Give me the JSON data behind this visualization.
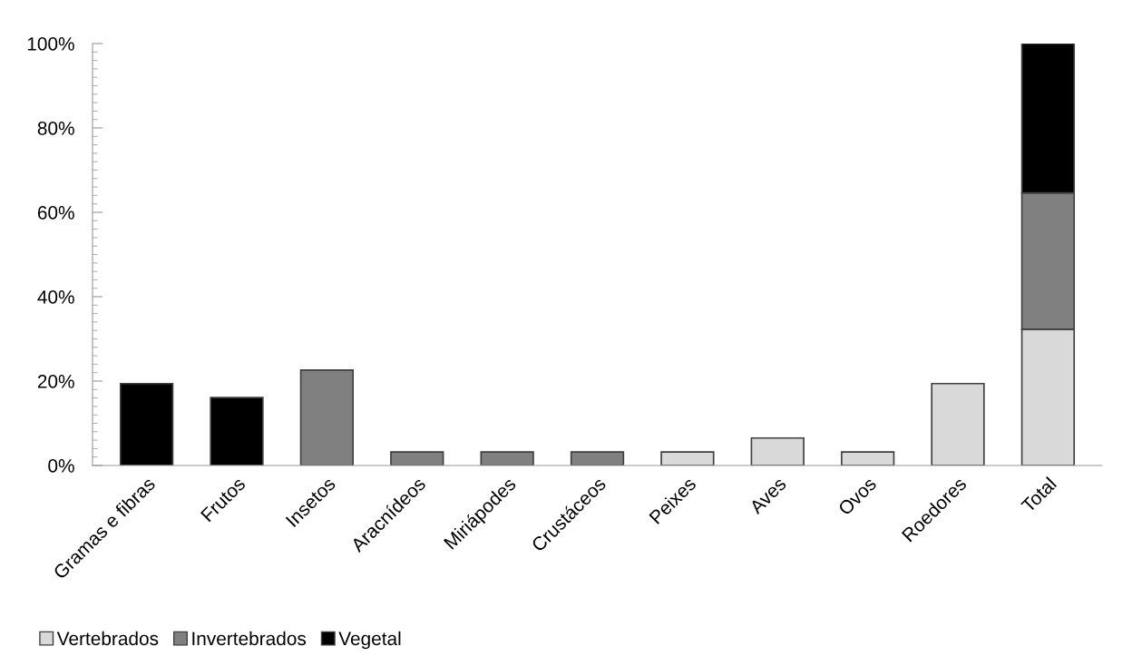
{
  "chart_data": {
    "type": "bar",
    "stacked": true,
    "categories": [
      "Gramas e fibras",
      "Frutos",
      "Insetos",
      "Aracnídeos",
      "Miriápodes",
      "Crustáceos",
      "Peixes",
      "Aves",
      "Ovos",
      "Roedores",
      "Total"
    ],
    "series": [
      {
        "name": "Vertebrados",
        "color": "#d9d9d9",
        "values": [
          null,
          null,
          null,
          null,
          null,
          null,
          3.2,
          6.5,
          3.2,
          19.4,
          32.3
        ]
      },
      {
        "name": "Invertebrados",
        "color": "#808080",
        "values": [
          null,
          null,
          22.6,
          3.2,
          3.2,
          3.2,
          null,
          null,
          null,
          null,
          32.3
        ]
      },
      {
        "name": "Vegetal",
        "color": "#000000",
        "values": [
          19.4,
          16.1,
          null,
          null,
          null,
          null,
          null,
          null,
          null,
          null,
          35.4
        ]
      }
    ],
    "ylim": [
      0,
      100
    ],
    "yticks": [
      {
        "value": 0,
        "label": "0%"
      },
      {
        "value": 20,
        "label": "20%"
      },
      {
        "value": 40,
        "label": "40%"
      },
      {
        "value": 60,
        "label": "60%"
      },
      {
        "value": 80,
        "label": "80%"
      },
      {
        "value": 100,
        "label": "100%"
      }
    ],
    "grid": false,
    "legend": "bottom left"
  }
}
